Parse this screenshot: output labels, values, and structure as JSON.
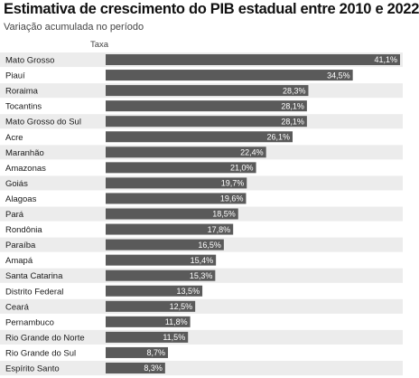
{
  "header": {
    "title": "Estimativa de crescimento do PIB estadual entre 2010 e 2022",
    "subtitle": "Variação acumulada no período",
    "column_label": "Taxa"
  },
  "colors": {
    "bar": "#5a5a5a",
    "row_band": "#ececec",
    "value_text": "#ffffff"
  },
  "chart_data": {
    "type": "bar",
    "orientation": "horizontal",
    "title": "Estimativa de crescimento do PIB estadual entre 2010 e 2022",
    "subtitle": "Variação acumulada no período",
    "xlabel": "Taxa",
    "ylabel": "",
    "xlim": [
      0,
      41.1
    ],
    "grid": false,
    "categories": [
      "Mato Grosso",
      "Piauí",
      "Roraima",
      "Tocantins",
      "Mato Grosso do Sul",
      "Acre",
      "Maranhão",
      "Amazonas",
      "Goiás",
      "Alagoas",
      "Pará",
      "Rondônia",
      "Paraíba",
      "Amapá",
      "Santa Catarina",
      "Distrito Federal",
      "Ceará",
      "Pernambuco",
      "Rio Grande do Norte",
      "Rio Grande do Sul",
      "Espírito Santo"
    ],
    "values": [
      41.1,
      34.5,
      28.3,
      28.1,
      28.1,
      26.1,
      22.4,
      21.0,
      19.7,
      19.6,
      18.5,
      17.8,
      16.5,
      15.4,
      15.3,
      13.5,
      12.5,
      11.8,
      11.5,
      8.7,
      8.3
    ],
    "value_labels": [
      "41,1%",
      "34,5%",
      "28,3%",
      "28,1%",
      "28,1%",
      "26,1%",
      "22,4%",
      "21,0%",
      "19,7%",
      "19,6%",
      "18,5%",
      "17,8%",
      "16,5%",
      "15,4%",
      "15,3%",
      "13,5%",
      "12,5%",
      "11,8%",
      "11,5%",
      "8,7%",
      "8,3%"
    ]
  }
}
